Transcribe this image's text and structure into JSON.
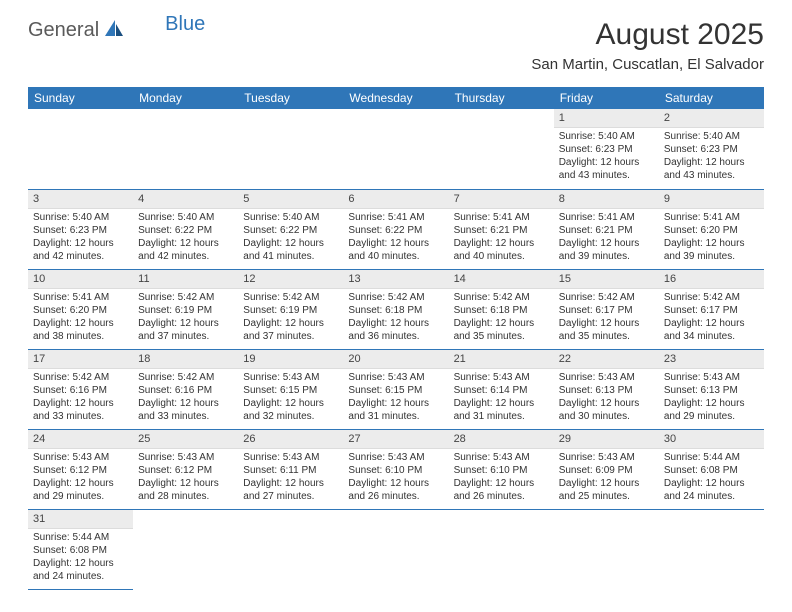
{
  "brand": {
    "part1": "General",
    "part2": "Blue"
  },
  "title": "August 2025",
  "location": "San Martin, Cuscatlan, El Salvador",
  "colors": {
    "accent": "#2f76b8",
    "header_text": "#ffffff",
    "daynum_bg": "#ececec",
    "text": "#333333"
  },
  "weekdays": [
    "Sunday",
    "Monday",
    "Tuesday",
    "Wednesday",
    "Thursday",
    "Friday",
    "Saturday"
  ],
  "weeks": [
    [
      null,
      null,
      null,
      null,
      null,
      {
        "n": "1",
        "sr": "Sunrise: 5:40 AM",
        "ss": "Sunset: 6:23 PM",
        "d1": "Daylight: 12 hours",
        "d2": "and 43 minutes."
      },
      {
        "n": "2",
        "sr": "Sunrise: 5:40 AM",
        "ss": "Sunset: 6:23 PM",
        "d1": "Daylight: 12 hours",
        "d2": "and 43 minutes."
      }
    ],
    [
      {
        "n": "3",
        "sr": "Sunrise: 5:40 AM",
        "ss": "Sunset: 6:23 PM",
        "d1": "Daylight: 12 hours",
        "d2": "and 42 minutes."
      },
      {
        "n": "4",
        "sr": "Sunrise: 5:40 AM",
        "ss": "Sunset: 6:22 PM",
        "d1": "Daylight: 12 hours",
        "d2": "and 42 minutes."
      },
      {
        "n": "5",
        "sr": "Sunrise: 5:40 AM",
        "ss": "Sunset: 6:22 PM",
        "d1": "Daylight: 12 hours",
        "d2": "and 41 minutes."
      },
      {
        "n": "6",
        "sr": "Sunrise: 5:41 AM",
        "ss": "Sunset: 6:22 PM",
        "d1": "Daylight: 12 hours",
        "d2": "and 40 minutes."
      },
      {
        "n": "7",
        "sr": "Sunrise: 5:41 AM",
        "ss": "Sunset: 6:21 PM",
        "d1": "Daylight: 12 hours",
        "d2": "and 40 minutes."
      },
      {
        "n": "8",
        "sr": "Sunrise: 5:41 AM",
        "ss": "Sunset: 6:21 PM",
        "d1": "Daylight: 12 hours",
        "d2": "and 39 minutes."
      },
      {
        "n": "9",
        "sr": "Sunrise: 5:41 AM",
        "ss": "Sunset: 6:20 PM",
        "d1": "Daylight: 12 hours",
        "d2": "and 39 minutes."
      }
    ],
    [
      {
        "n": "10",
        "sr": "Sunrise: 5:41 AM",
        "ss": "Sunset: 6:20 PM",
        "d1": "Daylight: 12 hours",
        "d2": "and 38 minutes."
      },
      {
        "n": "11",
        "sr": "Sunrise: 5:42 AM",
        "ss": "Sunset: 6:19 PM",
        "d1": "Daylight: 12 hours",
        "d2": "and 37 minutes."
      },
      {
        "n": "12",
        "sr": "Sunrise: 5:42 AM",
        "ss": "Sunset: 6:19 PM",
        "d1": "Daylight: 12 hours",
        "d2": "and 37 minutes."
      },
      {
        "n": "13",
        "sr": "Sunrise: 5:42 AM",
        "ss": "Sunset: 6:18 PM",
        "d1": "Daylight: 12 hours",
        "d2": "and 36 minutes."
      },
      {
        "n": "14",
        "sr": "Sunrise: 5:42 AM",
        "ss": "Sunset: 6:18 PM",
        "d1": "Daylight: 12 hours",
        "d2": "and 35 minutes."
      },
      {
        "n": "15",
        "sr": "Sunrise: 5:42 AM",
        "ss": "Sunset: 6:17 PM",
        "d1": "Daylight: 12 hours",
        "d2": "and 35 minutes."
      },
      {
        "n": "16",
        "sr": "Sunrise: 5:42 AM",
        "ss": "Sunset: 6:17 PM",
        "d1": "Daylight: 12 hours",
        "d2": "and 34 minutes."
      }
    ],
    [
      {
        "n": "17",
        "sr": "Sunrise: 5:42 AM",
        "ss": "Sunset: 6:16 PM",
        "d1": "Daylight: 12 hours",
        "d2": "and 33 minutes."
      },
      {
        "n": "18",
        "sr": "Sunrise: 5:42 AM",
        "ss": "Sunset: 6:16 PM",
        "d1": "Daylight: 12 hours",
        "d2": "and 33 minutes."
      },
      {
        "n": "19",
        "sr": "Sunrise: 5:43 AM",
        "ss": "Sunset: 6:15 PM",
        "d1": "Daylight: 12 hours",
        "d2": "and 32 minutes."
      },
      {
        "n": "20",
        "sr": "Sunrise: 5:43 AM",
        "ss": "Sunset: 6:15 PM",
        "d1": "Daylight: 12 hours",
        "d2": "and 31 minutes."
      },
      {
        "n": "21",
        "sr": "Sunrise: 5:43 AM",
        "ss": "Sunset: 6:14 PM",
        "d1": "Daylight: 12 hours",
        "d2": "and 31 minutes."
      },
      {
        "n": "22",
        "sr": "Sunrise: 5:43 AM",
        "ss": "Sunset: 6:13 PM",
        "d1": "Daylight: 12 hours",
        "d2": "and 30 minutes."
      },
      {
        "n": "23",
        "sr": "Sunrise: 5:43 AM",
        "ss": "Sunset: 6:13 PM",
        "d1": "Daylight: 12 hours",
        "d2": "and 29 minutes."
      }
    ],
    [
      {
        "n": "24",
        "sr": "Sunrise: 5:43 AM",
        "ss": "Sunset: 6:12 PM",
        "d1": "Daylight: 12 hours",
        "d2": "and 29 minutes."
      },
      {
        "n": "25",
        "sr": "Sunrise: 5:43 AM",
        "ss": "Sunset: 6:12 PM",
        "d1": "Daylight: 12 hours",
        "d2": "and 28 minutes."
      },
      {
        "n": "26",
        "sr": "Sunrise: 5:43 AM",
        "ss": "Sunset: 6:11 PM",
        "d1": "Daylight: 12 hours",
        "d2": "and 27 minutes."
      },
      {
        "n": "27",
        "sr": "Sunrise: 5:43 AM",
        "ss": "Sunset: 6:10 PM",
        "d1": "Daylight: 12 hours",
        "d2": "and 26 minutes."
      },
      {
        "n": "28",
        "sr": "Sunrise: 5:43 AM",
        "ss": "Sunset: 6:10 PM",
        "d1": "Daylight: 12 hours",
        "d2": "and 26 minutes."
      },
      {
        "n": "29",
        "sr": "Sunrise: 5:43 AM",
        "ss": "Sunset: 6:09 PM",
        "d1": "Daylight: 12 hours",
        "d2": "and 25 minutes."
      },
      {
        "n": "30",
        "sr": "Sunrise: 5:44 AM",
        "ss": "Sunset: 6:08 PM",
        "d1": "Daylight: 12 hours",
        "d2": "and 24 minutes."
      }
    ],
    [
      {
        "n": "31",
        "sr": "Sunrise: 5:44 AM",
        "ss": "Sunset: 6:08 PM",
        "d1": "Daylight: 12 hours",
        "d2": "and 24 minutes."
      },
      null,
      null,
      null,
      null,
      null,
      null
    ]
  ]
}
